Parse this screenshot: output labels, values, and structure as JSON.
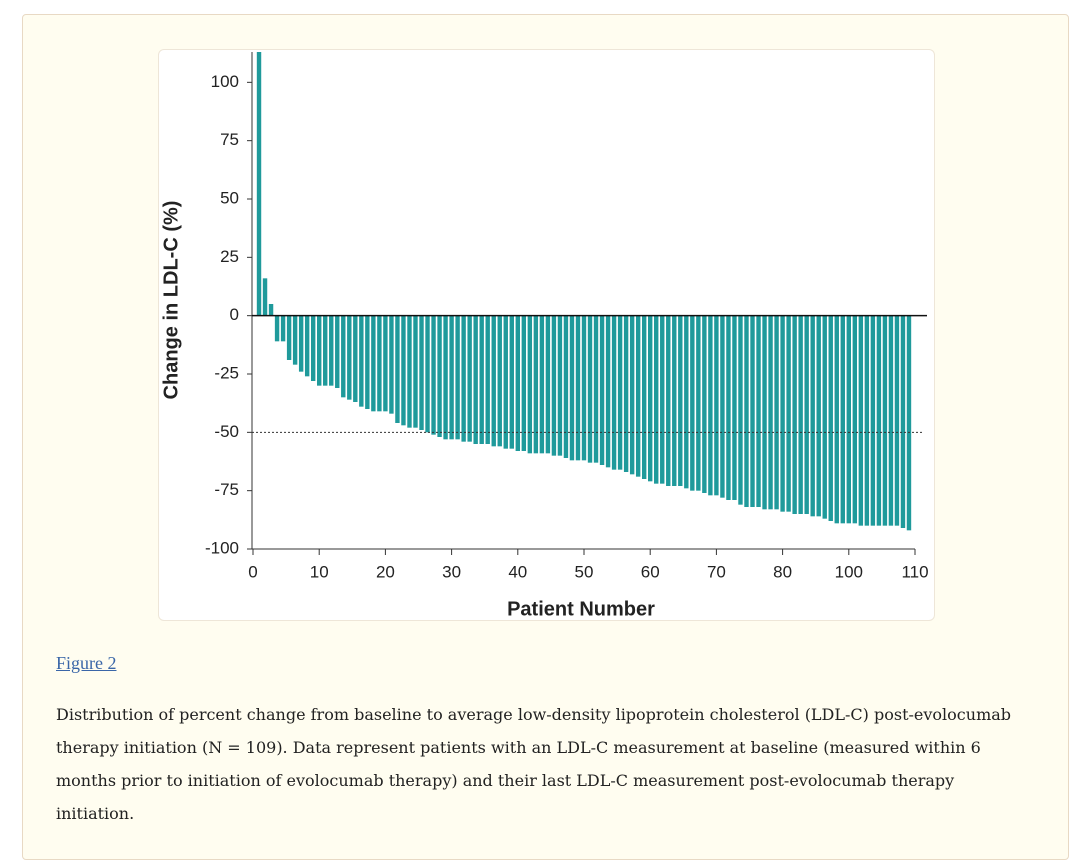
{
  "chart_data": {
    "type": "bar",
    "ylabel": "Change in LDL-C (%)",
    "xlabel": "Patient Number",
    "x": [
      1,
      2,
      3,
      4,
      5,
      6,
      7,
      8,
      9,
      10,
      11,
      12,
      13,
      14,
      15,
      16,
      17,
      18,
      19,
      20,
      21,
      22,
      23,
      24,
      25,
      26,
      27,
      28,
      29,
      30,
      31,
      32,
      33,
      34,
      35,
      36,
      37,
      38,
      39,
      40,
      41,
      42,
      43,
      44,
      45,
      46,
      47,
      48,
      49,
      50,
      51,
      52,
      53,
      54,
      55,
      56,
      57,
      58,
      59,
      60,
      61,
      62,
      63,
      64,
      65,
      66,
      67,
      68,
      69,
      70,
      71,
      72,
      73,
      74,
      75,
      76,
      77,
      78,
      79,
      80,
      81,
      82,
      83,
      84,
      85,
      86,
      87,
      88,
      89,
      90,
      91,
      92,
      93,
      94,
      95,
      96,
      97,
      98,
      99,
      100,
      101,
      102,
      103,
      104,
      105,
      106,
      107,
      108,
      109
    ],
    "values": [
      113,
      16,
      5,
      -11,
      -11,
      -19,
      -21,
      -24,
      -26,
      -28,
      -30,
      -30,
      -30,
      -31,
      -35,
      -36,
      -37,
      -39,
      -40,
      -41,
      -41,
      -41,
      -42,
      -46,
      -47,
      -48,
      -48,
      -49,
      -50,
      -51,
      -52,
      -53,
      -53,
      -53,
      -54,
      -54,
      -55,
      -55,
      -55,
      -56,
      -56,
      -57,
      -57,
      -58,
      -58,
      -59,
      -59,
      -59,
      -59,
      -60,
      -60,
      -61,
      -62,
      -62,
      -62,
      -63,
      -63,
      -64,
      -65,
      -66,
      -66,
      -67,
      -68,
      -69,
      -70,
      -71,
      -72,
      -72,
      -73,
      -73,
      -73,
      -74,
      -75,
      -75,
      -76,
      -77,
      -77,
      -78,
      -79,
      -79,
      -81,
      -82,
      -82,
      -82,
      -83,
      -83,
      -83,
      -84,
      -84,
      -85,
      -85,
      -85,
      -86,
      -86,
      -87,
      -88,
      -89,
      -89,
      -89,
      -89,
      -90,
      -90,
      -90,
      -90,
      -90,
      -90,
      -90,
      -91,
      -92
    ],
    "color": "#1f9a9b",
    "xlim": [
      0,
      110
    ],
    "xticks": [
      0,
      {
        "value": 11,
        "label": "10"
      },
      {
        "value": 22,
        "label": "20"
      },
      {
        "value": 33,
        "label": "30"
      },
      {
        "value": 44,
        "label": "40"
      },
      {
        "value": 55,
        "label": "50"
      },
      {
        "value": 66,
        "label": "60"
      },
      {
        "value": 77,
        "label": "70"
      },
      {
        "value": 88,
        "label": "80"
      },
      {
        "value": 99,
        "label": "100"
      },
      110
    ],
    "ylim": [
      -100,
      113
    ],
    "yticks": [
      100,
      75,
      50,
      25,
      0,
      -25,
      -50,
      -75,
      -100
    ],
    "reference_line": -50
  },
  "figure_label": "Figure 2",
  "caption": "Distribution of percent change from baseline to average low-density lipoprotein cholesterol (LDL-C) post-evolocumab therapy initiation (N = 109). Data represent patients with an LDL-C measurement at baseline (measured within 6 months prior to initiation of evolocumab therapy) and their last LDL-C measurement post-evolocumab therapy initiation."
}
